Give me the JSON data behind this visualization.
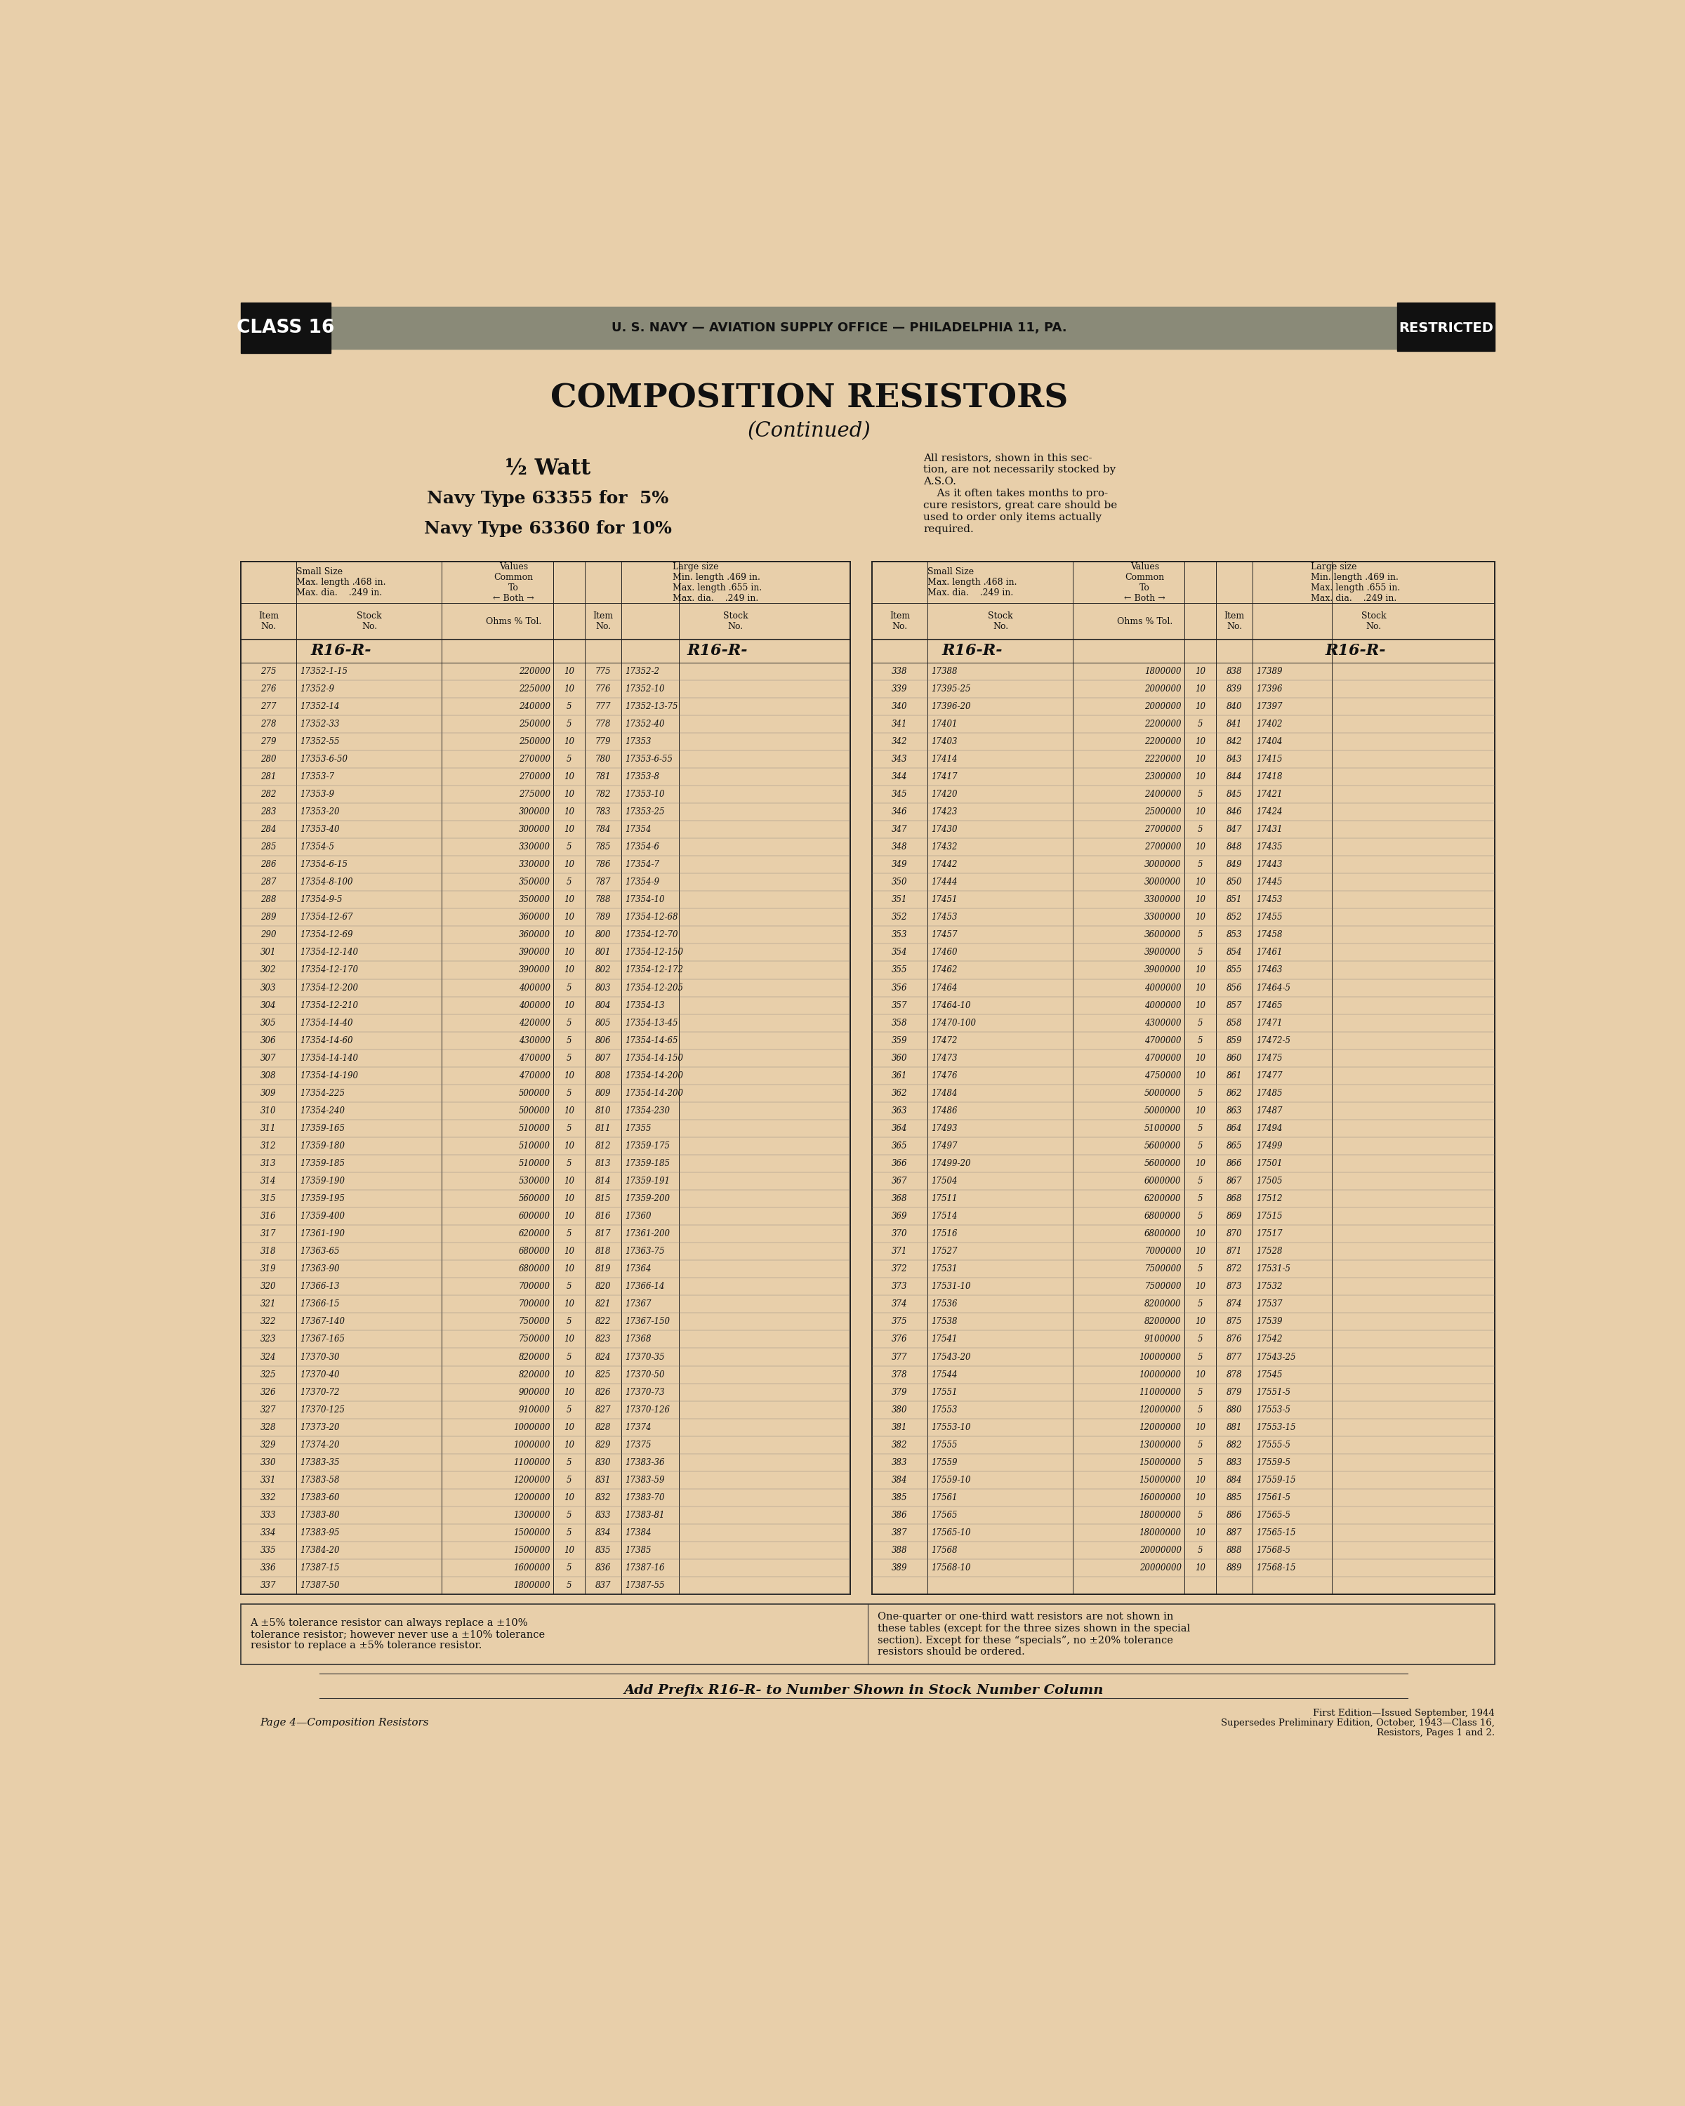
{
  "page_bg": "#e8cfaa",
  "header_bg": "#8a8a78",
  "header_text": "U. S. NAVY — AVIATION SUPPLY OFFICE — PHILADELPHIA 11, PA.",
  "class_text": "CLASS 16",
  "restricted_text": "RESTRICTED",
  "title": "COMPOSITION RESISTORS",
  "subtitle": "(Continued)",
  "watt_text": "½ Watt",
  "navy_type1": "Navy Type 63355 for  5%",
  "navy_type2": "Navy Type 63360 for 10%",
  "side_note_line1": "All resistors, shown in this sec-",
  "side_note_line2": "tion, are not necessarily stocked by",
  "side_note_line3": "A.S.O.",
  "side_note_line4": "    As it often takes months to pro-",
  "side_note_line5": "cure resistors, great care should be",
  "side_note_line6": "used to order only items actually",
  "side_note_line7": "required.",
  "left_table_data": [
    [
      "275",
      "17352-1-15",
      "220000",
      "10",
      "775",
      "17352-2"
    ],
    [
      "276",
      "17352-9",
      "225000",
      "10",
      "776",
      "17352-10"
    ],
    [
      "277",
      "17352-14",
      "240000",
      "5",
      "777",
      "17352-13-75"
    ],
    [
      "278",
      "17352-33",
      "250000",
      "5",
      "778",
      "17352-40"
    ],
    [
      "279",
      "17352-55",
      "250000",
      "10",
      "779",
      "17353"
    ],
    [
      "280",
      "17353-6-50",
      "270000",
      "5",
      "780",
      "17353-6-55"
    ],
    [
      "281",
      "17353-7",
      "270000",
      "10",
      "781",
      "17353-8"
    ],
    [
      "282",
      "17353-9",
      "275000",
      "10",
      "782",
      "17353-10"
    ],
    [
      "283",
      "17353-20",
      "300000",
      "10",
      "783",
      "17353-25"
    ],
    [
      "284",
      "17353-40",
      "300000",
      "10",
      "784",
      "17354"
    ],
    [
      "285",
      "17354-5",
      "330000",
      "5",
      "785",
      "17354-6"
    ],
    [
      "286",
      "17354-6-15",
      "330000",
      "10",
      "786",
      "17354-7"
    ],
    [
      "287",
      "17354-8-100",
      "350000",
      "5",
      "787",
      "17354-9"
    ],
    [
      "288",
      "17354-9-5",
      "350000",
      "10",
      "788",
      "17354-10"
    ],
    [
      "289",
      "17354-12-67",
      "360000",
      "10",
      "789",
      "17354-12-68"
    ],
    [
      "290",
      "17354-12-69",
      "360000",
      "10",
      "800",
      "17354-12-70"
    ],
    [
      "301",
      "17354-12-140",
      "390000",
      "10",
      "801",
      "17354-12-150"
    ],
    [
      "302",
      "17354-12-170",
      "390000",
      "10",
      "802",
      "17354-12-172"
    ],
    [
      "303",
      "17354-12-200",
      "400000",
      "5",
      "803",
      "17354-12-205"
    ],
    [
      "304",
      "17354-12-210",
      "400000",
      "10",
      "804",
      "17354-13"
    ],
    [
      "305",
      "17354-14-40",
      "420000",
      "5",
      "805",
      "17354-13-45"
    ],
    [
      "306",
      "17354-14-60",
      "430000",
      "5",
      "806",
      "17354-14-65"
    ],
    [
      "307",
      "17354-14-140",
      "470000",
      "5",
      "807",
      "17354-14-150"
    ],
    [
      "308",
      "17354-14-190",
      "470000",
      "10",
      "808",
      "17354-14-200"
    ],
    [
      "309",
      "17354-225",
      "500000",
      "5",
      "809",
      "17354-14-200"
    ],
    [
      "310",
      "17354-240",
      "500000",
      "10",
      "810",
      "17354-230"
    ],
    [
      "311",
      "17359-165",
      "510000",
      "5",
      "811",
      "17355"
    ],
    [
      "312",
      "17359-180",
      "510000",
      "10",
      "812",
      "17359-175"
    ],
    [
      "313",
      "17359-185",
      "510000",
      "5",
      "813",
      "17359-185"
    ],
    [
      "314",
      "17359-190",
      "530000",
      "10",
      "814",
      "17359-191"
    ],
    [
      "315",
      "17359-195",
      "560000",
      "10",
      "815",
      "17359-200"
    ],
    [
      "316",
      "17359-400",
      "600000",
      "10",
      "816",
      "17360"
    ],
    [
      "317",
      "17361-190",
      "620000",
      "5",
      "817",
      "17361-200"
    ],
    [
      "318",
      "17363-65",
      "680000",
      "10",
      "818",
      "17363-75"
    ],
    [
      "319",
      "17363-90",
      "680000",
      "10",
      "819",
      "17364"
    ],
    [
      "320",
      "17366-13",
      "700000",
      "5",
      "820",
      "17366-14"
    ],
    [
      "321",
      "17366-15",
      "700000",
      "10",
      "821",
      "17367"
    ],
    [
      "322",
      "17367-140",
      "750000",
      "5",
      "822",
      "17367-150"
    ],
    [
      "323",
      "17367-165",
      "750000",
      "10",
      "823",
      "17368"
    ],
    [
      "324",
      "17370-30",
      "820000",
      "5",
      "824",
      "17370-35"
    ],
    [
      "325",
      "17370-40",
      "820000",
      "10",
      "825",
      "17370-50"
    ],
    [
      "326",
      "17370-72",
      "900000",
      "10",
      "826",
      "17370-73"
    ],
    [
      "327",
      "17370-125",
      "910000",
      "5",
      "827",
      "17370-126"
    ],
    [
      "328",
      "17373-20",
      "1000000",
      "10",
      "828",
      "17374"
    ],
    [
      "329",
      "17374-20",
      "1000000",
      "10",
      "829",
      "17375"
    ],
    [
      "330",
      "17383-35",
      "1100000",
      "5",
      "830",
      "17383-36"
    ],
    [
      "331",
      "17383-58",
      "1200000",
      "5",
      "831",
      "17383-59"
    ],
    [
      "332",
      "17383-60",
      "1200000",
      "10",
      "832",
      "17383-70"
    ],
    [
      "333",
      "17383-80",
      "1300000",
      "5",
      "833",
      "17383-81"
    ],
    [
      "334",
      "17383-95",
      "1500000",
      "5",
      "834",
      "17384"
    ],
    [
      "335",
      "17384-20",
      "1500000",
      "10",
      "835",
      "17385"
    ],
    [
      "336",
      "17387-15",
      "1600000",
      "5",
      "836",
      "17387-16"
    ],
    [
      "337",
      "17387-50",
      "1800000",
      "5",
      "837",
      "17387-55"
    ]
  ],
  "right_table_data": [
    [
      "338",
      "17388",
      "1800000",
      "10",
      "838",
      "17389"
    ],
    [
      "339",
      "17395-25",
      "2000000",
      "10",
      "839",
      "17396"
    ],
    [
      "340",
      "17396-20",
      "2000000",
      "10",
      "840",
      "17397"
    ],
    [
      "341",
      "17401",
      "2200000",
      "5",
      "841",
      "17402"
    ],
    [
      "342",
      "17403",
      "2200000",
      "10",
      "842",
      "17404"
    ],
    [
      "343",
      "17414",
      "2220000",
      "10",
      "843",
      "17415"
    ],
    [
      "344",
      "17417",
      "2300000",
      "10",
      "844",
      "17418"
    ],
    [
      "345",
      "17420",
      "2400000",
      "5",
      "845",
      "17421"
    ],
    [
      "346",
      "17423",
      "2500000",
      "10",
      "846",
      "17424"
    ],
    [
      "347",
      "17430",
      "2700000",
      "5",
      "847",
      "17431"
    ],
    [
      "348",
      "17432",
      "2700000",
      "10",
      "848",
      "17435"
    ],
    [
      "349",
      "17442",
      "3000000",
      "5",
      "849",
      "17443"
    ],
    [
      "350",
      "17444",
      "3000000",
      "10",
      "850",
      "17445"
    ],
    [
      "351",
      "17451",
      "3300000",
      "10",
      "851",
      "17453"
    ],
    [
      "352",
      "17453",
      "3300000",
      "10",
      "852",
      "17455"
    ],
    [
      "353",
      "17457",
      "3600000",
      "5",
      "853",
      "17458"
    ],
    [
      "354",
      "17460",
      "3900000",
      "5",
      "854",
      "17461"
    ],
    [
      "355",
      "17462",
      "3900000",
      "10",
      "855",
      "17463"
    ],
    [
      "356",
      "17464",
      "4000000",
      "10",
      "856",
      "17464-5"
    ],
    [
      "357",
      "17464-10",
      "4000000",
      "10",
      "857",
      "17465"
    ],
    [
      "358",
      "17470-100",
      "4300000",
      "5",
      "858",
      "17471"
    ],
    [
      "359",
      "17472",
      "4700000",
      "5",
      "859",
      "17472-5"
    ],
    [
      "360",
      "17473",
      "4700000",
      "10",
      "860",
      "17475"
    ],
    [
      "361",
      "17476",
      "4750000",
      "10",
      "861",
      "17477"
    ],
    [
      "362",
      "17484",
      "5000000",
      "5",
      "862",
      "17485"
    ],
    [
      "363",
      "17486",
      "5000000",
      "10",
      "863",
      "17487"
    ],
    [
      "364",
      "17493",
      "5100000",
      "5",
      "864",
      "17494"
    ],
    [
      "365",
      "17497",
      "5600000",
      "5",
      "865",
      "17499"
    ],
    [
      "366",
      "17499-20",
      "5600000",
      "10",
      "866",
      "17501"
    ],
    [
      "367",
      "17504",
      "6000000",
      "5",
      "867",
      "17505"
    ],
    [
      "368",
      "17511",
      "6200000",
      "5",
      "868",
      "17512"
    ],
    [
      "369",
      "17514",
      "6800000",
      "5",
      "869",
      "17515"
    ],
    [
      "370",
      "17516",
      "6800000",
      "10",
      "870",
      "17517"
    ],
    [
      "371",
      "17527",
      "7000000",
      "10",
      "871",
      "17528"
    ],
    [
      "372",
      "17531",
      "7500000",
      "5",
      "872",
      "17531-5"
    ],
    [
      "373",
      "17531-10",
      "7500000",
      "10",
      "873",
      "17532"
    ],
    [
      "374",
      "17536",
      "8200000",
      "5",
      "874",
      "17537"
    ],
    [
      "375",
      "17538",
      "8200000",
      "10",
      "875",
      "17539"
    ],
    [
      "376",
      "17541",
      "9100000",
      "5",
      "876",
      "17542"
    ],
    [
      "377",
      "17543-20",
      "10000000",
      "5",
      "877",
      "17543-25"
    ],
    [
      "378",
      "17544",
      "10000000",
      "10",
      "878",
      "17545"
    ],
    [
      "379",
      "17551",
      "11000000",
      "5",
      "879",
      "17551-5"
    ],
    [
      "380",
      "17553",
      "12000000",
      "5",
      "880",
      "17553-5"
    ],
    [
      "381",
      "17553-10",
      "12000000",
      "10",
      "881",
      "17553-15"
    ],
    [
      "382",
      "17555",
      "13000000",
      "5",
      "882",
      "17555-5"
    ],
    [
      "383",
      "17559",
      "15000000",
      "5",
      "883",
      "17559-5"
    ],
    [
      "384",
      "17559-10",
      "15000000",
      "10",
      "884",
      "17559-15"
    ],
    [
      "385",
      "17561",
      "16000000",
      "10",
      "885",
      "17561-5"
    ],
    [
      "386",
      "17565",
      "18000000",
      "5",
      "886",
      "17565-5"
    ],
    [
      "387",
      "17565-10",
      "18000000",
      "10",
      "887",
      "17565-15"
    ],
    [
      "388",
      "17568",
      "20000000",
      "5",
      "888",
      "17568-5"
    ],
    [
      "389",
      "17568-10",
      "20000000",
      "10",
      "889",
      "17568-15"
    ]
  ],
  "footer_note1": "A ±5% tolerance resistor can always replace a ±10%\ntolerance resistor; however never use a ±10% tolerance\nresistor to replace a ±5% tolerance resistor.",
  "footer_note2": "One-quarter or one-third watt resistors are not shown in\nthese tables (except for the three sizes shown in the special\nsection). Except for these “specials”, no ±20% tolerance\nresistors should be ordered.",
  "prefix_note": "Add Prefix R16-R- to Number Shown in Stock Number Column",
  "page_label": "Page 4—Composition Resistors",
  "edition_note1": "First Edition—Issued September, 1944",
  "edition_note2": "Supersedes Preliminary Edition, October, 1943—Class 16,",
  "edition_note3": "Resistors, Pages 1 and 2."
}
